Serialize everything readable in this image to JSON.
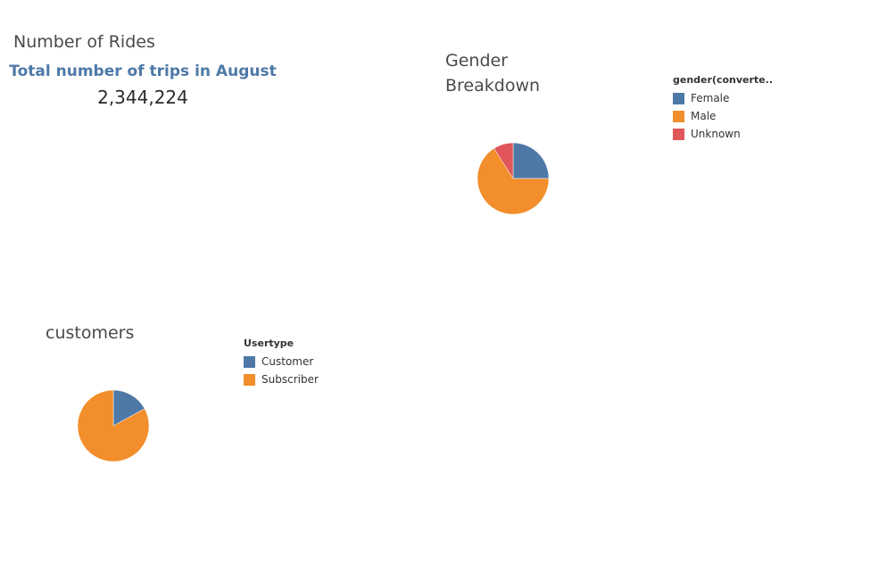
{
  "kpi_sheet": {
    "title": "Number of Rides",
    "label": "Total number of trips in August",
    "value": "2,344,224"
  },
  "gender_sheet": {
    "title_line1": "Gender",
    "title_line2": "Breakdown",
    "legend_title": "gender(converte.."
  },
  "customers_sheet": {
    "title": "customers",
    "legend_title": "Usertype"
  },
  "colors": {
    "blue": "#4e79a7",
    "orange": "#f28e2b",
    "red": "#e15759"
  },
  "chart_data": [
    {
      "type": "pie",
      "categories": [
        "Female",
        "Male",
        "Unknown"
      ],
      "values": [
        25,
        66,
        9
      ],
      "colors": [
        "#4e79a7",
        "#f28e2b",
        "#e15759"
      ],
      "start_angle_deg": 0,
      "direction": "clockwise",
      "legend": "right"
    },
    {
      "type": "pie",
      "categories": [
        "Customer",
        "Subscriber"
      ],
      "values": [
        17,
        83
      ],
      "colors": [
        "#4e79a7",
        "#f28e2b"
      ],
      "start_angle_deg": 0,
      "direction": "clockwise",
      "legend": "right"
    }
  ]
}
